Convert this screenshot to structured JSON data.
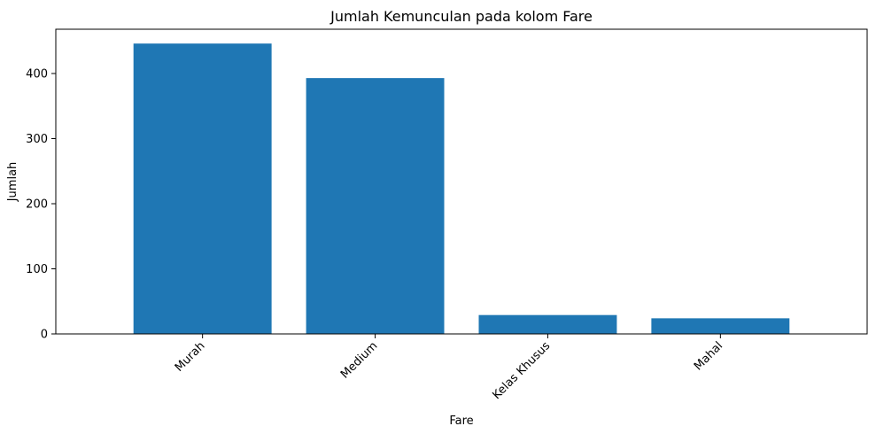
{
  "chart_data": {
    "type": "bar",
    "title": "Jumlah Kemunculan pada kolom Fare",
    "xlabel": "Fare",
    "ylabel": "Jumlah",
    "categories": [
      "Murah",
      "Medium",
      "Kelas Khusus",
      "Mahal"
    ],
    "values": [
      446,
      393,
      29,
      24
    ],
    "ylim": [
      0,
      468
    ],
    "yticks": [
      0,
      100,
      200,
      300,
      400
    ],
    "bar_color": "#1f77b4",
    "grid": false,
    "xtick_rotation": 45
  }
}
